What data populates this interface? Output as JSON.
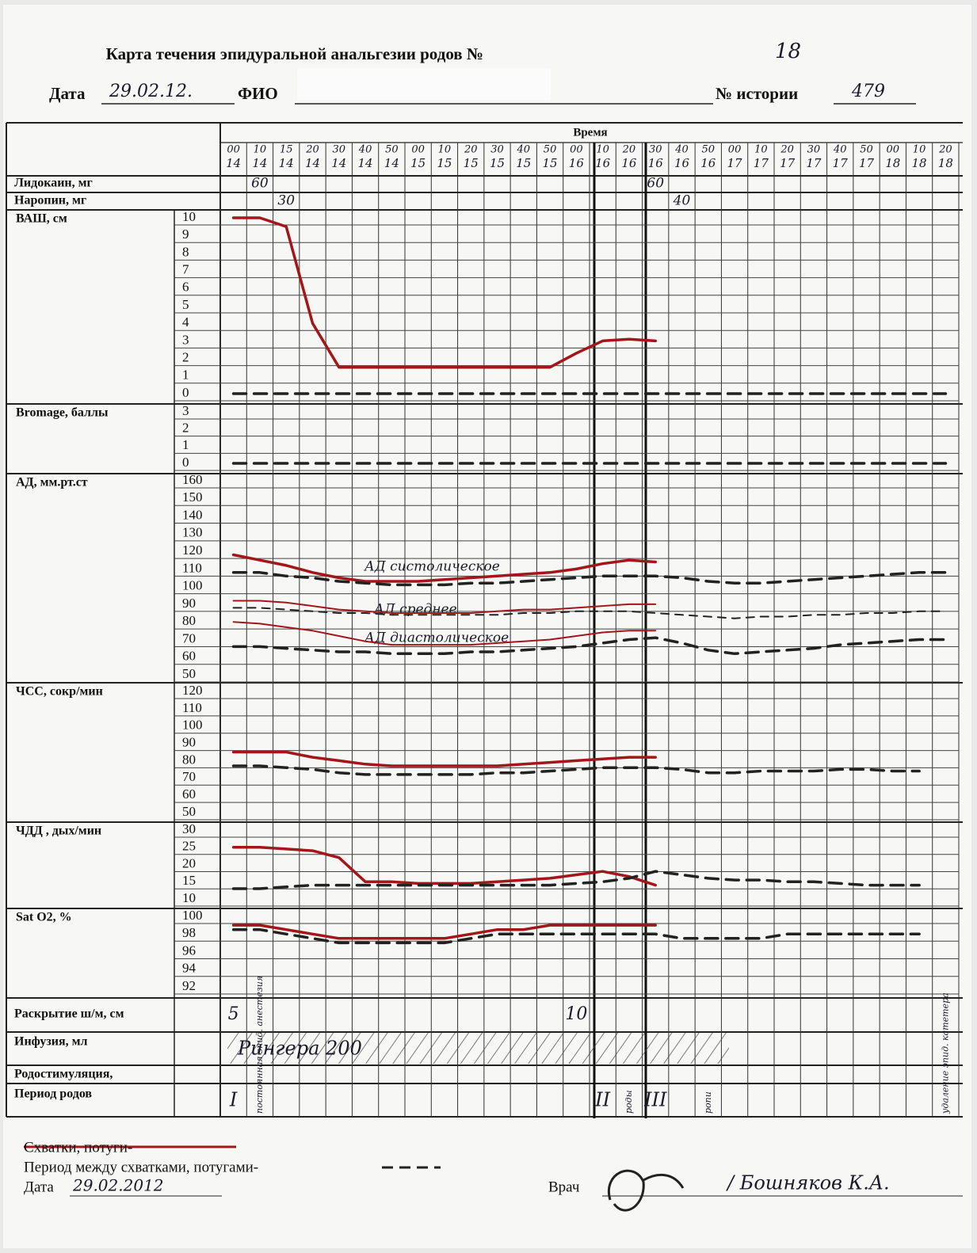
{
  "header": {
    "title": "Карта течения эпидуральной анальгезии родов №",
    "number": "18",
    "date_label": "Дата",
    "date": "29.02.12.",
    "name_label": "ФИО",
    "history_label": "№ истории",
    "history": "479"
  },
  "table": {
    "time_label": "Время",
    "minutes": [
      "00",
      "10",
      "15",
      "20",
      "30",
      "40",
      "50",
      "00",
      "10",
      "20",
      "30",
      "40",
      "50",
      "00",
      "10",
      "20",
      "30",
      "40",
      "50",
      "00",
      "10",
      "20",
      "30",
      "40",
      "50",
      "00",
      "10",
      "20"
    ],
    "hours": [
      "14",
      "14",
      "14",
      "14",
      "14",
      "14",
      "14",
      "15",
      "15",
      "15",
      "15",
      "15",
      "15",
      "16",
      "16",
      "16",
      "16",
      "16",
      "16",
      "17",
      "17",
      "17",
      "17",
      "17",
      "17",
      "18",
      "18",
      "18"
    ],
    "lidocaine": {
      "label": "Лидокаин, мг",
      "values": [
        null,
        60,
        null,
        null,
        null,
        null,
        null,
        null,
        null,
        null,
        null,
        null,
        null,
        null,
        null,
        null,
        60,
        null,
        null,
        null,
        null,
        null,
        null,
        null,
        null,
        null,
        null,
        null
      ]
    },
    "naropin": {
      "label": "Наропин, мг",
      "values": [
        null,
        null,
        30,
        null,
        null,
        null,
        null,
        null,
        null,
        null,
        null,
        null,
        null,
        null,
        null,
        null,
        null,
        40,
        null,
        null,
        null,
        null,
        null,
        null,
        null,
        null,
        null,
        null
      ]
    },
    "blocks": [
      {
        "label": "ВАШ, см",
        "ticks": [
          10,
          9,
          8,
          7,
          6,
          5,
          4,
          3,
          2,
          1,
          0
        ],
        "ylim": [
          0,
          10
        ],
        "series": [
          {
            "color": "#a3171b",
            "style": "solid",
            "values": [
              10,
              10,
              9.5,
              4,
              1.5,
              1.5,
              1.5,
              1.5,
              1.5,
              1.5,
              1.5,
              1.5,
              1.5,
              2.3,
              3,
              3.1,
              3,
              null,
              null,
              null,
              null,
              null,
              null,
              null,
              null,
              null,
              null,
              null
            ]
          },
          {
            "color": "#222222",
            "style": "dashed",
            "values": [
              0,
              0,
              0,
              0,
              0,
              0,
              0,
              0,
              0,
              0,
              0,
              0,
              0,
              0,
              0,
              0,
              0,
              0,
              0,
              0,
              0,
              0,
              0,
              0,
              0,
              0,
              0,
              0
            ]
          }
        ]
      },
      {
        "label": "Bromage,  баллы",
        "ticks": [
          3,
          2,
          1,
          0
        ],
        "ylim": [
          0,
          3
        ],
        "series": [
          {
            "color": "#222222",
            "style": "dashed",
            "values": [
              0,
              0,
              0,
              0,
              0,
              0,
              0,
              0,
              0,
              0,
              0,
              0,
              0,
              0,
              0,
              0,
              0,
              0,
              0,
              0,
              0,
              0,
              0,
              0,
              0,
              0,
              0,
              0
            ]
          }
        ]
      },
      {
        "label": "АД, мм.рт.ст",
        "ticks": [
          160,
          150,
          140,
          130,
          120,
          110,
          100,
          90,
          80,
          70,
          60,
          50
        ],
        "ylim": [
          50,
          160
        ],
        "annotations": [
          "АД систолическое",
          "АД среднее",
          "АД диастолическое"
        ],
        "series": [
          {
            "color": "#a3171b",
            "style": "solid",
            "values": [
              118,
              115,
              112,
              108,
              105,
              103,
              103,
              103,
              104,
              105,
              106,
              107,
              108,
              110,
              113,
              115,
              114,
              null,
              null,
              null,
              null,
              null,
              null,
              null,
              null,
              null,
              null,
              null
            ]
          },
          {
            "color": "#222222",
            "style": "dashed",
            "values": [
              108,
              108,
              106,
              105,
              103,
              102,
              101,
              101,
              101,
              102,
              102,
              103,
              104,
              105,
              106,
              106,
              106,
              105,
              103,
              102,
              102,
              103,
              104,
              105,
              106,
              107,
              108,
              108
            ]
          },
          {
            "color": "#a3171b",
            "style": "thin",
            "values": [
              92,
              92,
              91,
              89,
              87,
              86,
              85,
              85,
              85,
              85,
              86,
              87,
              87,
              88,
              89,
              90,
              90,
              null,
              null,
              null,
              null,
              null,
              null,
              null,
              null,
              null,
              null,
              null
            ]
          },
          {
            "color": "#222222",
            "style": "dashed-thin",
            "values": [
              88,
              88,
              87,
              86,
              85,
              85,
              84,
              84,
              84,
              84,
              84,
              85,
              85,
              86,
              86,
              86,
              85,
              84,
              83,
              82,
              83,
              83,
              84,
              84,
              85,
              85,
              86,
              86
            ]
          },
          {
            "color": "#a3171b",
            "style": "thin",
            "values": [
              80,
              79,
              77,
              75,
              72,
              69,
              67,
              67,
              67,
              67,
              68,
              69,
              70,
              72,
              74,
              75,
              75,
              null,
              null,
              null,
              null,
              null,
              null,
              null,
              null,
              null,
              null,
              null
            ]
          },
          {
            "color": "#222222",
            "style": "dashed",
            "values": [
              66,
              66,
              65,
              64,
              63,
              63,
              62,
              62,
              62,
              63,
              63,
              64,
              65,
              66,
              68,
              70,
              71,
              68,
              64,
              62,
              63,
              64,
              65,
              67,
              68,
              69,
              70,
              70
            ]
          }
        ]
      },
      {
        "label": "ЧСС, сокр/мин",
        "ticks": [
          120,
          110,
          100,
          90,
          80,
          70,
          60,
          50
        ],
        "ylim": [
          50,
          120
        ],
        "series": [
          {
            "color": "#a3171b",
            "style": "solid",
            "values": [
              85,
              85,
              85,
              82,
              80,
              78,
              77,
              77,
              77,
              77,
              77,
              78,
              79,
              80,
              81,
              82,
              82,
              null,
              null,
              null,
              null,
              null,
              null,
              null,
              null,
              null,
              null,
              null
            ]
          },
          {
            "color": "#222222",
            "style": "dashed",
            "values": [
              77,
              77,
              76,
              75,
              73,
              72,
              72,
              72,
              72,
              72,
              73,
              73,
              74,
              75,
              76,
              76,
              76,
              75,
              73,
              73,
              74,
              74,
              74,
              75,
              75,
              74,
              74,
              null
            ]
          }
        ]
      },
      {
        "label": "ЧДД , дых/мин",
        "ticks": [
          30,
          25,
          20,
          15,
          10
        ],
        "ylim": [
          10,
          30
        ],
        "series": [
          {
            "color": "#a3171b",
            "style": "solid",
            "values": [
              25,
              25,
              24.5,
              24,
              22,
              15,
              15,
              14.5,
              14.5,
              14.5,
              15,
              15.5,
              16,
              17,
              18,
              16.5,
              14,
              null,
              null,
              null,
              null,
              null,
              null,
              null,
              null,
              null,
              null,
              null
            ]
          },
          {
            "color": "#222222",
            "style": "dashed",
            "values": [
              13,
              13,
              13.5,
              14,
              14,
              14,
              14,
              14,
              14,
              14,
              14,
              14,
              14,
              14.5,
              15,
              16,
              18,
              17,
              16,
              15.5,
              15.5,
              15,
              15,
              14.5,
              14,
              14,
              14,
              null
            ]
          }
        ]
      },
      {
        "label": "Sat O2, %",
        "ticks": [
          100,
          98,
          96,
          94,
          92
        ],
        "ylim": [
          92,
          100
        ],
        "series": [
          {
            "color": "#a3171b",
            "style": "solid",
            "values": [
              99,
              99,
              98.5,
              98,
              97.5,
              97.5,
              97.5,
              97.5,
              97.5,
              98,
              98.5,
              98.5,
              99,
              99,
              99,
              99,
              99,
              null,
              null,
              null,
              null,
              null,
              null,
              null,
              null,
              null,
              null,
              null
            ]
          },
          {
            "color": "#222222",
            "style": "dashed",
            "values": [
              98.5,
              98.5,
              98,
              97.5,
              97,
              97,
              97,
              97,
              97,
              97.5,
              98,
              98,
              98,
              98,
              98,
              98,
              98,
              97.5,
              97.5,
              97.5,
              97.5,
              98,
              98,
              98,
              98,
              98,
              98,
              null
            ]
          }
        ]
      }
    ],
    "dilation": {
      "label": "Раскрытие ш/м, см",
      "values": [
        5,
        null,
        null,
        null,
        null,
        null,
        null,
        null,
        null,
        null,
        null,
        null,
        null,
        10,
        null,
        null,
        null,
        null,
        null,
        null,
        null,
        null,
        null,
        null,
        null,
        null,
        null,
        null
      ]
    },
    "infusion": {
      "label": "Инфузия, мл",
      "text": "Рингера 200"
    },
    "stimulation": {
      "label": "Родостимуляция,"
    },
    "period": {
      "label": "Период родов",
      "values": [
        "I",
        "постоянная эпид. анестезия",
        null,
        null,
        null,
        null,
        null,
        null,
        null,
        null,
        null,
        null,
        null,
        null,
        "II",
        "роды",
        "III",
        null,
        "ропи",
        null,
        null,
        null,
        null,
        null,
        null,
        null,
        null,
        "удаление эпид. катетера"
      ]
    }
  },
  "footer": {
    "legend": [
      "Схватки, потуги-",
      "Период между схватками, потугами-"
    ],
    "date_label": "Дата",
    "date": "29.02.2012",
    "doctor_label": "Врач",
    "doctor": "/ Бошняков К.А."
  }
}
